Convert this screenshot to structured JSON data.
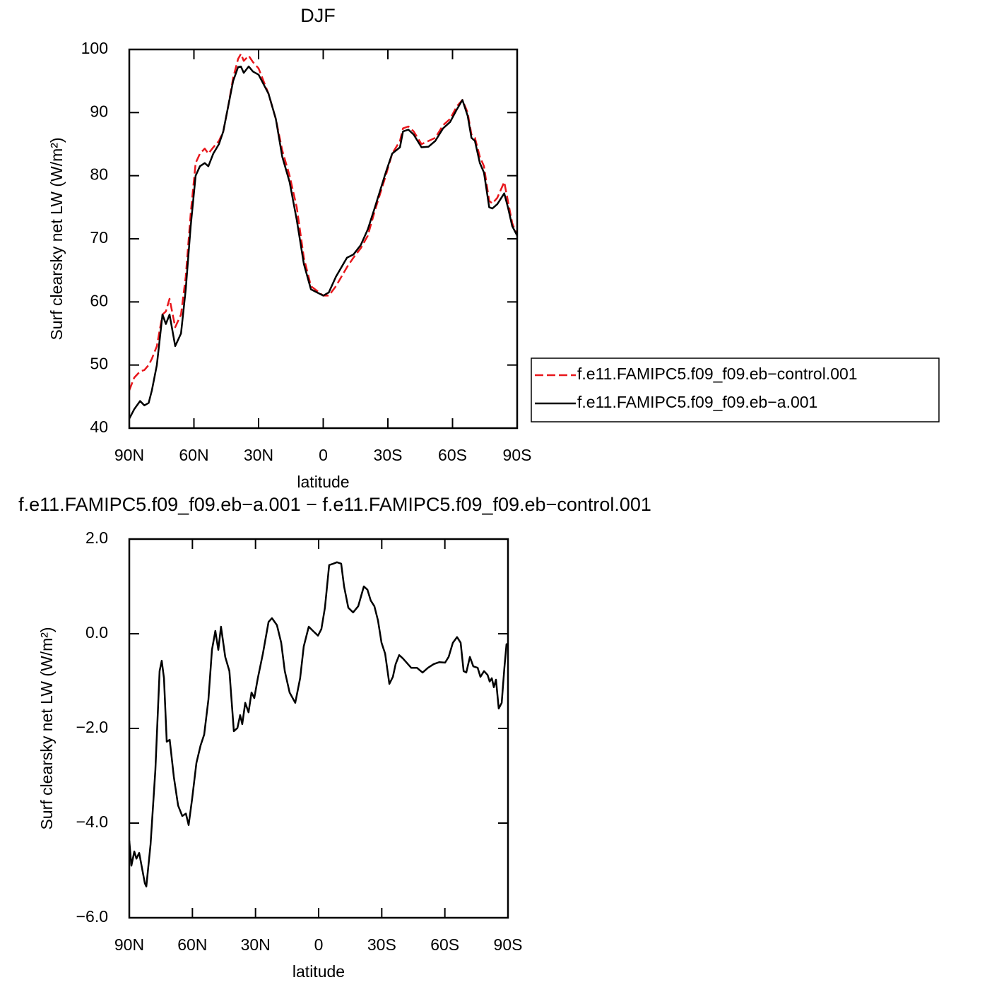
{
  "chart_data": [
    {
      "type": "line",
      "title": "DJF",
      "xlabel": "latitude",
      "ylabel": "Surf clearsky net LW (W/m²)",
      "xlim": [
        90,
        -90
      ],
      "ylim": [
        40,
        100
      ],
      "xticks": [
        {
          "value": 90,
          "label": "90N"
        },
        {
          "value": 60,
          "label": "60N"
        },
        {
          "value": 30,
          "label": "30N"
        },
        0,
        {
          "value": -30,
          "label": "30S"
        },
        {
          "value": -60,
          "label": "60S"
        },
        {
          "value": -90,
          "label": "90S"
        }
      ],
      "yticks": [
        40,
        50,
        60,
        70,
        80,
        90,
        100
      ],
      "legend": "right",
      "x": [
        90,
        87.7,
        85,
        83,
        81,
        79.5,
        77.2,
        74.6,
        73,
        71.3,
        68.7,
        66,
        63.8,
        61.5,
        59.2,
        57.2,
        55,
        53.3,
        51,
        48.4,
        46.4,
        44.1,
        41.8,
        39.5,
        38.2,
        36.9,
        34.6,
        32.6,
        30,
        25.4,
        22,
        19,
        15.6,
        12.3,
        9,
        5.7,
        0,
        -2.6,
        -5.9,
        -11,
        -14,
        -17.4,
        -20.7,
        -24,
        -29,
        -32,
        -35.6,
        -37,
        -39.5,
        -42,
        -45.6,
        -48.9,
        -52,
        -55.6,
        -58.9,
        -62,
        -64.6,
        -67,
        -68.8,
        -70.4,
        -72.7,
        -74.6,
        -77,
        -78.5,
        -80.8,
        -84,
        -85.7,
        -87.7,
        -90
      ],
      "series": [
        {
          "name": "f.e11.FAMIPC5.f09_f09.eb−control.001",
          "color": "#e8161b",
          "line_style": "dashed",
          "values": [
            46,
            48,
            49,
            49.2,
            50,
            51,
            53,
            58,
            58.5,
            60.5,
            56,
            58,
            64,
            74,
            82,
            83.5,
            84.3,
            83.5,
            84.5,
            85.5,
            87,
            91,
            95.5,
            98.5,
            99.3,
            98.2,
            99,
            98,
            97,
            93,
            89,
            84,
            80,
            75,
            67,
            62.5,
            61,
            61,
            62.5,
            65.5,
            67,
            68.5,
            70.5,
            74.5,
            80,
            83.5,
            85.5,
            87.5,
            87.8,
            87,
            85,
            85.5,
            86,
            88,
            89,
            91,
            92,
            90,
            86.5,
            86,
            83,
            81.5,
            76,
            75.6,
            76.5,
            79,
            76,
            72.5,
            70.5
          ]
        },
        {
          "name": "f.e11.FAMIPC5.f09_f09.eb−a.001",
          "color": "#000000",
          "line_style": "solid",
          "values": [
            41.5,
            43,
            44.3,
            43.6,
            44,
            46,
            50,
            58,
            56.5,
            58,
            53,
            55,
            62,
            72,
            80,
            81.5,
            82,
            81.5,
            83.5,
            85,
            87,
            91,
            95,
            97.2,
            97.3,
            96.3,
            97.3,
            96.5,
            96,
            93,
            89,
            83,
            79,
            73,
            66,
            62,
            61,
            61.5,
            64,
            67,
            67.5,
            69,
            71.5,
            75,
            80.5,
            83.5,
            84.5,
            87,
            87.3,
            86.5,
            84.5,
            84.6,
            85.5,
            87.5,
            88.5,
            90.5,
            92,
            89.5,
            86,
            85.5,
            82,
            80.5,
            75,
            74.8,
            75.5,
            77.2,
            75,
            72,
            70.5
          ]
        }
      ]
    },
    {
      "type": "line",
      "title": "f.e11.FAMIPC5.f09_f09.eb−a.001 − f.e11.FAMIPC5.f09_f09.eb−control.001",
      "xlabel": "latitude",
      "ylabel": "Surf clearsky net LW (W/m²)",
      "xlim": [
        90,
        -90
      ],
      "ylim": [
        -6,
        2
      ],
      "xticks": [
        {
          "value": 90,
          "label": "90N"
        },
        {
          "value": 60,
          "label": "60N"
        },
        {
          "value": 30,
          "label": "30N"
        },
        0,
        {
          "value": -30,
          "label": "30S"
        },
        {
          "value": -60,
          "label": "60S"
        },
        {
          "value": -90,
          "label": "90S"
        }
      ],
      "yticks": [
        {
          "value": -6,
          "label": "−6.0"
        },
        {
          "value": -4,
          "label": "−4.0"
        },
        {
          "value": -2,
          "label": "−2.0"
        },
        {
          "value": 0,
          "label": "0.0"
        },
        {
          "value": 2,
          "label": "2.0"
        }
      ],
      "color": "#000000",
      "x": [
        90,
        89.0,
        87.6,
        86.6,
        85.3,
        82.6,
        81.9,
        79.9,
        77.6,
        75.6,
        74.6,
        73.5,
        72.2,
        70.8,
        68.8,
        66.8,
        64.8,
        63.1,
        61.8,
        60.1,
        58.1,
        56.1,
        54.4,
        52.4,
        50.7,
        49.1,
        47.7,
        46.4,
        44.4,
        42.4,
        40.3,
        38.6,
        37.3,
        36.3,
        34.9,
        33.3,
        31.9,
        30.6,
        28.9,
        26.5,
        23.8,
        22.2,
        19.8,
        17.8,
        16.1,
        13.8,
        11.1,
        8.8,
        7.1,
        4.7,
        2.7,
        0.3,
        -1.3,
        -3.0,
        -5.0,
        -7.0,
        -8.7,
        -10.7,
        -12.1,
        -14.1,
        -16.4,
        -18.8,
        -21.5,
        -23.2,
        -24.8,
        -26.5,
        -28.2,
        -29.9,
        -31.6,
        -33.6,
        -35.3,
        -36.6,
        -38.3,
        -40.0,
        -41.6,
        -44.0,
        -46.7,
        -49.4,
        -52.0,
        -54.7,
        -57.4,
        -60.1,
        -61.8,
        -63.8,
        -65.8,
        -67.5,
        -68.9,
        -70.2,
        -71.9,
        -73.5,
        -75.6,
        -76.9,
        -78.6,
        -80.3,
        -81.3,
        -82.3,
        -83.3,
        -84.3,
        -85.6,
        -87.0,
        -88.3,
        -89.3,
        -90
      ],
      "values": [
        -4.37,
        -4.9,
        -4.6,
        -4.75,
        -4.63,
        -5.27,
        -5.34,
        -4.45,
        -2.88,
        -0.79,
        -0.57,
        -0.94,
        -2.28,
        -2.24,
        -3.03,
        -3.63,
        -3.85,
        -3.8,
        -4.04,
        -3.48,
        -2.73,
        -2.36,
        -2.13,
        -1.39,
        -0.34,
        0.06,
        -0.34,
        0.15,
        -0.49,
        -0.79,
        -2.06,
        -1.99,
        -1.72,
        -1.91,
        -1.46,
        -1.66,
        -1.24,
        -1.36,
        -0.94,
        -0.42,
        0.25,
        0.33,
        0.18,
        -0.19,
        -0.79,
        -1.24,
        -1.46,
        -0.94,
        -0.27,
        0.15,
        0.06,
        -0.04,
        0.1,
        0.55,
        1.45,
        1.48,
        1.51,
        1.48,
        1.0,
        0.55,
        0.45,
        0.58,
        1.0,
        0.93,
        0.7,
        0.58,
        0.28,
        -0.19,
        -0.42,
        -1.06,
        -0.91,
        -0.64,
        -0.45,
        -0.52,
        -0.6,
        -0.72,
        -0.72,
        -0.82,
        -0.72,
        -0.64,
        -0.6,
        -0.61,
        -0.49,
        -0.19,
        -0.07,
        -0.19,
        -0.79,
        -0.82,
        -0.49,
        -0.69,
        -0.72,
        -0.91,
        -0.79,
        -0.87,
        -1.01,
        -0.94,
        -1.13,
        -0.97,
        -1.58,
        -1.46,
        -0.72,
        -0.22,
        -0.22
      ]
    }
  ]
}
